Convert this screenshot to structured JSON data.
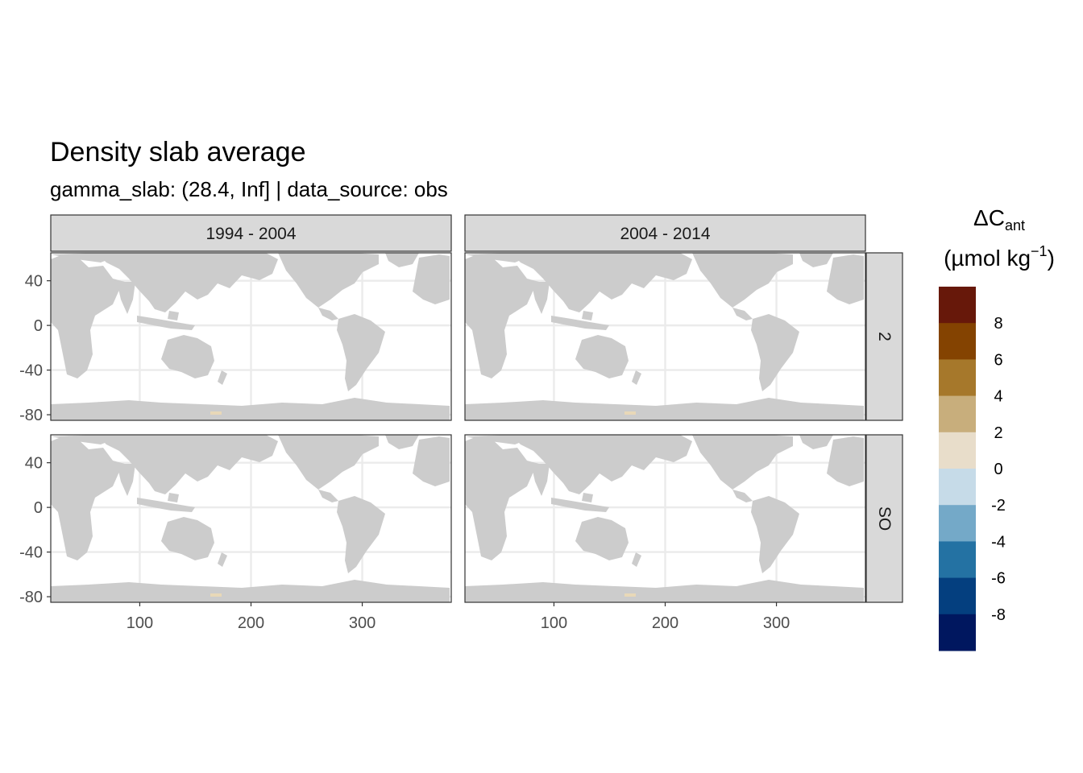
{
  "title": "Density slab average",
  "subtitle": "gamma_slab: (28.4, Inf] | data_source: obs",
  "colors": {
    "land": "#cccccc",
    "grid": "#ebebeb",
    "strip_fill": "#d9d9d9",
    "border": "#333333",
    "positive_patch": "#e8d8b8"
  },
  "chart_data": {
    "type": "heatmap",
    "title": "Density slab average",
    "subtitle": "gamma_slab: (28.4, Inf] | data_source: obs",
    "facet_cols": [
      "1994 - 2004",
      "2004 - 2014"
    ],
    "facet_rows": [
      "2",
      "SO"
    ],
    "x": {
      "ticks": [
        100,
        200,
        300
      ],
      "tick_labels": [
        "100",
        "200",
        "300"
      ],
      "range": [
        20,
        380
      ]
    },
    "y": {
      "ticks": [
        40,
        0,
        -40,
        -80
      ],
      "tick_labels": [
        "40",
        "0",
        "-40",
        "-80"
      ],
      "range": [
        -85,
        65
      ]
    },
    "grid": true,
    "legend": {
      "position": "right",
      "title_main": "ΔC",
      "title_sub": "ant",
      "title_unit": "(µmol kg",
      "title_exp": "−1",
      "title_close": ")",
      "bins": [
        {
          "from": 8,
          "to": 10,
          "color": "#67180a"
        },
        {
          "from": 6,
          "to": 8,
          "color": "#844301"
        },
        {
          "from": 4,
          "to": 6,
          "color": "#a6782b"
        },
        {
          "from": 2,
          "to": 4,
          "color": "#c8ae7c"
        },
        {
          "from": 0,
          "to": 2,
          "color": "#e8ddca"
        },
        {
          "from": -2,
          "to": 0,
          "color": "#c6dbe8"
        },
        {
          "from": -4,
          "to": -2,
          "color": "#74a9c8"
        },
        {
          "from": -6,
          "to": -4,
          "color": "#2472a3"
        },
        {
          "from": -8,
          "to": -6,
          "color": "#043f7f"
        },
        {
          "from": -10,
          "to": -8,
          "color": "#00175f"
        }
      ],
      "breaks": [
        "8",
        "6",
        "4",
        "2",
        "0",
        "-2",
        "-4",
        "-6",
        "-8"
      ]
    }
  }
}
